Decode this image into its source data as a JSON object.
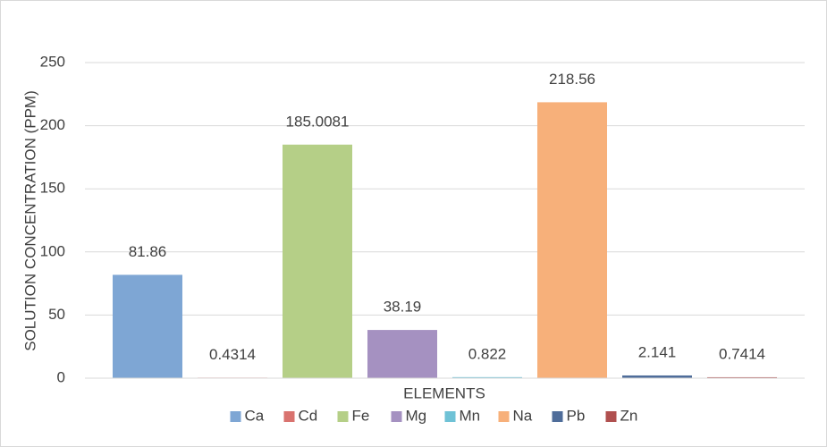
{
  "chart_data": {
    "type": "bar",
    "x_label": "ELEMENTS",
    "y_label": "SOLUTION CONCENTRATION (PPM)",
    "categories": [
      null
    ],
    "series": [
      {
        "name": "Ca",
        "color": "#7ea6d4",
        "values": [
          81.86
        ]
      },
      {
        "name": "Cd",
        "color": "#d9736f",
        "values": [
          0.4314
        ]
      },
      {
        "name": "Fe",
        "color": "#b5cf87",
        "values": [
          185.0081
        ]
      },
      {
        "name": "Mg",
        "color": "#a591c1",
        "values": [
          38.19
        ]
      },
      {
        "name": "Mn",
        "color": "#6fc2d6",
        "values": [
          0.822
        ]
      },
      {
        "name": "Na",
        "color": "#f7b07a",
        "values": [
          218.56
        ]
      },
      {
        "name": "Pb",
        "color": "#4f6d9a",
        "values": [
          2.141
        ]
      },
      {
        "name": "Zn",
        "color": "#b0504f",
        "values": [
          0.7414
        ]
      }
    ],
    "ylim": [
      0,
      250
    ],
    "yticks": [
      0,
      50,
      100,
      150,
      200,
      250
    ],
    "grid": true,
    "legend": "bottom"
  }
}
